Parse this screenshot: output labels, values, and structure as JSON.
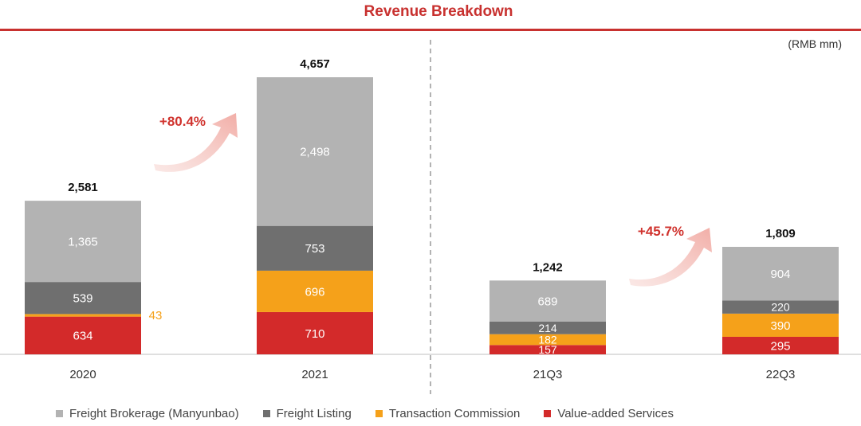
{
  "chart_data": {
    "type": "bar",
    "title": "Revenue Breakdown",
    "unit_label": "(RMB mm)",
    "categories": [
      "2020",
      "2021",
      "21Q3",
      "22Q3"
    ],
    "series": [
      {
        "name": "Value-added Services",
        "color": "#d32a2a",
        "values": [
          634,
          710,
          157,
          295
        ]
      },
      {
        "name": "Transaction Commission",
        "color": "#f5a11a",
        "values": [
          43,
          696,
          182,
          390
        ]
      },
      {
        "name": "Freight Listing",
        "color": "#6f6f6f",
        "values": [
          539,
          753,
          214,
          220
        ]
      },
      {
        "name": "Freight Brokerage (Manyunbao)",
        "color": "#b3b3b3",
        "values": [
          1365,
          2498,
          689,
          904
        ]
      }
    ],
    "totals": [
      "2,581",
      "4,657",
      "1,242",
      "1,809"
    ],
    "value_labels": [
      [
        "634",
        "710",
        "157",
        "295"
      ],
      [
        "43",
        "696",
        "182",
        "390"
      ],
      [
        "539",
        "753",
        "214",
        "220"
      ],
      [
        "1,365",
        "2,498",
        "689",
        "904"
      ]
    ],
    "growth": [
      {
        "label": "+80.4%",
        "from": "2020",
        "to": "2021"
      },
      {
        "label": "+45.7%",
        "from": "21Q3",
        "to": "22Q3"
      }
    ],
    "legend_position": "bottom",
    "grid": false
  }
}
